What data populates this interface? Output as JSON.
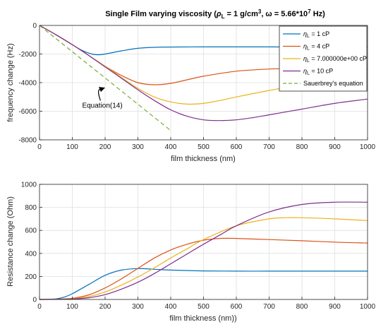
{
  "chart_data": [
    {
      "type": "line",
      "title_main": "Single Film varying viscosity (",
      "title_rho": "ρ",
      "title_rho_sub": "L",
      "title_mid": " = 1 g/cm",
      "title_sup": "3",
      "title_omega": ", ω = 5.66*10",
      "title_sup2": "7",
      "title_end": " Hz)",
      "xlabel": "film thickness (nm)",
      "ylabel": "frequency change (Hz)",
      "xlim": [
        0,
        1000
      ],
      "ylim": [
        -8000,
        0
      ],
      "xticks": [
        0,
        100,
        200,
        300,
        400,
        500,
        600,
        700,
        800,
        900,
        1000
      ],
      "yticks": [
        0,
        -2000,
        -4000,
        -6000,
        -8000
      ],
      "ytick_labels": [
        "0",
        "-2000",
        "-4000",
        "-6000",
        "-8000"
      ],
      "grid": true,
      "legend_position": "top-right",
      "annotation": "Equation(14)",
      "annotation_point": [
        200,
        -4350
      ],
      "annotation_text_at": [
        130,
        -5750
      ],
      "series": [
        {
          "name": "η",
          "sub": "L",
          "suffix": " = 1 cP",
          "color": "#0072BD",
          "dash": false,
          "x": [
            0,
            50,
            100,
            130,
            160,
            180,
            200,
            250,
            300,
            350,
            400,
            500,
            600,
            700,
            800,
            900,
            1000
          ],
          "y": [
            0,
            -650,
            -1350,
            -1750,
            -2000,
            -2050,
            -2000,
            -1780,
            -1600,
            -1530,
            -1510,
            -1500,
            -1500,
            -1500,
            -1510,
            -1510,
            -1510
          ]
        },
        {
          "name": "η",
          "sub": "L",
          "suffix": " = 4 cP",
          "color": "#D95319",
          "dash": false,
          "x": [
            0,
            50,
            100,
            150,
            200,
            250,
            300,
            350,
            400,
            450,
            500,
            600,
            700,
            800,
            900,
            1000
          ],
          "y": [
            0,
            -650,
            -1350,
            -2100,
            -2850,
            -3500,
            -4000,
            -4150,
            -4050,
            -3800,
            -3550,
            -3200,
            -3050,
            -3000,
            -3020,
            -3050
          ]
        },
        {
          "name": "η",
          "sub": "L",
          "suffix": " = 7.000000e+00 cP",
          "color": "#EDB120",
          "dash": false,
          "x": [
            0,
            50,
            100,
            150,
            200,
            250,
            300,
            350,
            400,
            450,
            500,
            550,
            600,
            700,
            800,
            900,
            1000
          ],
          "y": [
            0,
            -650,
            -1350,
            -2100,
            -2850,
            -3650,
            -4400,
            -5000,
            -5350,
            -5500,
            -5450,
            -5250,
            -5000,
            -4550,
            -4150,
            -3850,
            -3650
          ]
        },
        {
          "name": "η",
          "sub": "L",
          "suffix": " = 10 cP",
          "color": "#7E2F8E",
          "dash": false,
          "x": [
            0,
            50,
            100,
            150,
            200,
            250,
            300,
            350,
            400,
            450,
            500,
            550,
            600,
            650,
            700,
            800,
            900,
            1000
          ],
          "y": [
            0,
            -650,
            -1350,
            -2100,
            -2900,
            -3700,
            -4500,
            -5250,
            -5900,
            -6350,
            -6600,
            -6650,
            -6600,
            -6450,
            -6250,
            -5850,
            -5450,
            -5150
          ]
        },
        {
          "name": "Sauerbrey's equation",
          "sub": "",
          "suffix": "",
          "color": "#77AC30",
          "dash": true,
          "x": [
            0,
            400
          ],
          "y": [
            0,
            -7350
          ]
        }
      ]
    },
    {
      "type": "line",
      "xlabel": "film thickness (nm))",
      "ylabel": "Resistance change (Ohm)",
      "xlim": [
        0,
        1000
      ],
      "ylim": [
        0,
        1000
      ],
      "xticks": [
        0,
        100,
        200,
        300,
        400,
        500,
        600,
        700,
        800,
        900,
        1000
      ],
      "yticks": [
        0,
        200,
        400,
        600,
        800,
        1000
      ],
      "grid": true,
      "series": [
        {
          "color": "#0072BD",
          "x": [
            0,
            50,
            75,
            100,
            150,
            200,
            250,
            300,
            350,
            400,
            500,
            600,
            700,
            800,
            900,
            1000
          ],
          "y": [
            0,
            5,
            20,
            50,
            130,
            210,
            255,
            268,
            262,
            255,
            248,
            246,
            246,
            246,
            246,
            246
          ]
        },
        {
          "color": "#D95319",
          "x": [
            0,
            50,
            100,
            150,
            200,
            250,
            300,
            350,
            400,
            450,
            500,
            550,
            600,
            700,
            800,
            900,
            1000
          ],
          "y": [
            0,
            2,
            10,
            40,
            100,
            180,
            270,
            360,
            430,
            480,
            515,
            530,
            530,
            520,
            510,
            498,
            490
          ]
        },
        {
          "color": "#EDB120",
          "x": [
            0,
            50,
            100,
            150,
            200,
            250,
            300,
            350,
            400,
            450,
            500,
            600,
            700,
            750,
            800,
            900,
            1000
          ],
          "y": [
            0,
            1,
            6,
            25,
            65,
            125,
            195,
            275,
            360,
            440,
            520,
            640,
            700,
            710,
            710,
            700,
            685
          ]
        },
        {
          "color": "#7E2F8E",
          "x": [
            0,
            50,
            100,
            150,
            200,
            250,
            300,
            350,
            400,
            450,
            500,
            550,
            600,
            700,
            800,
            900,
            1000
          ],
          "y": [
            0,
            1,
            4,
            15,
            42,
            90,
            150,
            225,
            310,
            395,
            480,
            560,
            640,
            760,
            825,
            845,
            845
          ]
        }
      ]
    }
  ]
}
